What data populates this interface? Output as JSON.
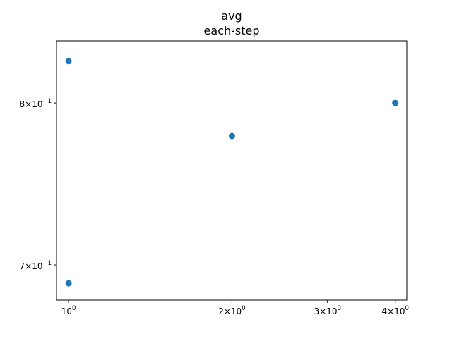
{
  "chart_data": {
    "type": "scatter",
    "title": "avg",
    "subtitle": "each-step",
    "xlabel": "",
    "ylabel": "",
    "x_scale": "log",
    "y_scale": "log",
    "xlim": [
      0.95,
      4.2
    ],
    "ylim": [
      0.68,
      0.842
    ],
    "grid": false,
    "x_ticks": [
      {
        "value": 1,
        "base": "10",
        "exp": "0",
        "coef": ""
      },
      {
        "value": 2,
        "base": "10",
        "exp": "0",
        "coef": "2"
      },
      {
        "value": 3,
        "base": "10",
        "exp": "0",
        "coef": "3"
      },
      {
        "value": 4,
        "base": "10",
        "exp": "0",
        "coef": "4"
      }
    ],
    "y_ticks": [
      {
        "value": 0.7,
        "base": "10",
        "exp": "−1",
        "coef": "7"
      },
      {
        "value": 0.8,
        "base": "10",
        "exp": "−1",
        "coef": "8"
      }
    ],
    "series": [
      {
        "x": [
          1,
          1,
          2,
          4
        ],
        "y": [
          0.828,
          0.6895,
          0.7785,
          0.8
        ]
      }
    ],
    "colors": {
      "points": "#1f77b4",
      "axes": "#000000"
    }
  }
}
